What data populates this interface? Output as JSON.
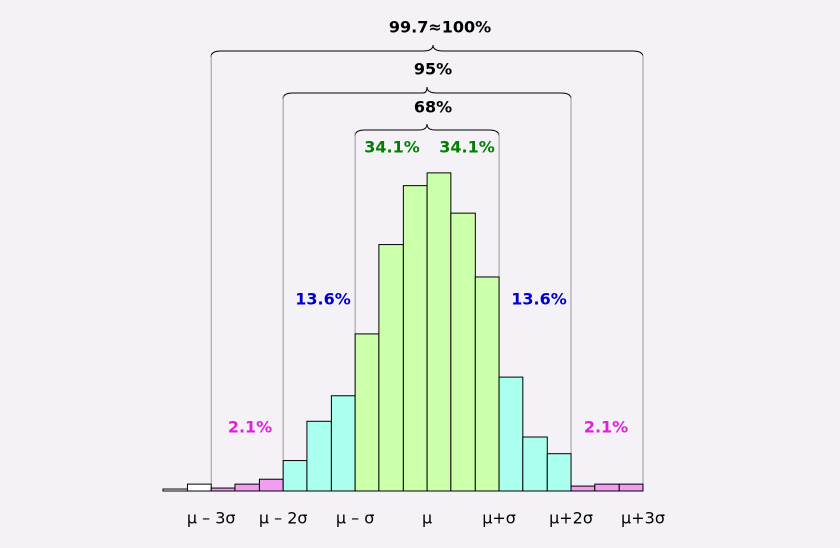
{
  "chart_data": {
    "type": "histogram",
    "bins": [
      -3.67,
      -3.33,
      -3,
      -2.67,
      -2.33,
      -2,
      -1.67,
      -1.33,
      -1,
      -0.67,
      -0.33,
      0,
      0.33,
      0.67,
      1,
      1.33,
      1.67,
      2,
      2.33,
      2.67,
      3
    ],
    "values": [
      2,
      7,
      3,
      7,
      12,
      31,
      71,
      97,
      160,
      251,
      311,
      324,
      283,
      218,
      116,
      55,
      38,
      5,
      7,
      7
    ],
    "colors": [
      "#ffffff",
      "#ffffff",
      "#f19ef0",
      "#f19ef0",
      "#f19ef0",
      "#aaffee",
      "#aaffee",
      "#aaffee",
      "#ccffaa",
      "#ccffaa",
      "#ccffaa",
      "#ccffaa",
      "#ccffaa",
      "#ccffaa",
      "#aaffee",
      "#aaffee",
      "#aaffee",
      "#f19ef0",
      "#f19ef0",
      "#f19ef0"
    ],
    "xlim": [
      -3.67,
      3
    ],
    "ylim": [
      0,
      330
    ],
    "xticks": [
      {
        "value": -3,
        "label": "μ – 3σ"
      },
      {
        "value": -2,
        "label": "μ – 2σ"
      },
      {
        "value": -1,
        "label": "μ – σ"
      },
      {
        "value": 0,
        "label": "μ"
      },
      {
        "value": 1,
        "label": "μ+σ"
      },
      {
        "value": 2,
        "label": "μ+2σ"
      },
      {
        "value": 3,
        "label": "μ+3σ"
      }
    ],
    "annotations": [
      "99.7≈100%",
      "95%",
      "68%",
      "34.1%",
      "34.1%",
      "13.6%",
      "13.6%",
      "2.1%",
      "2.1%"
    ]
  }
}
